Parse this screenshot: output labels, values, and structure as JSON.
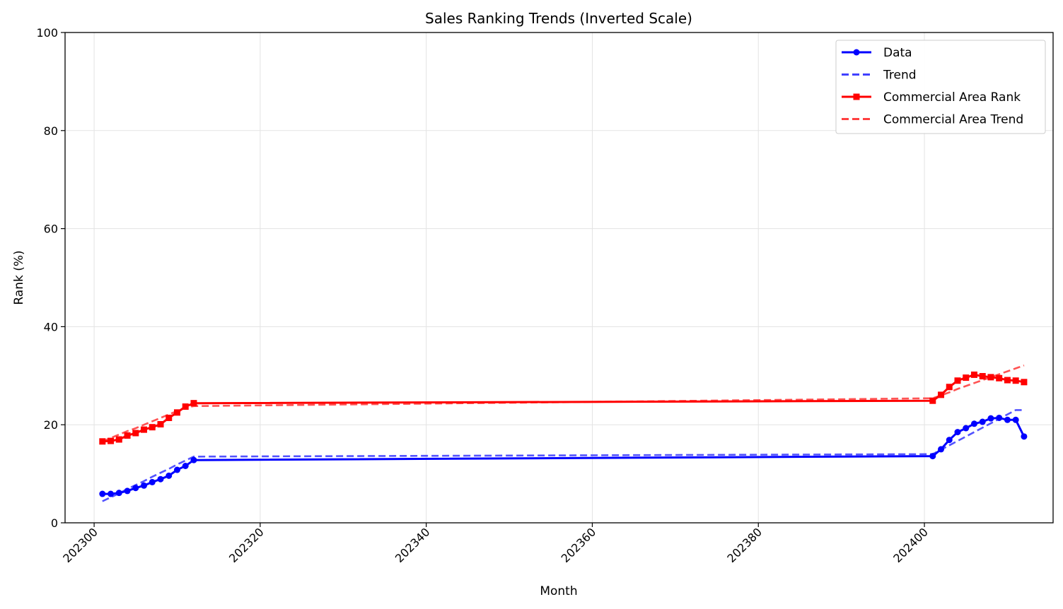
{
  "chart_data": {
    "type": "line",
    "title": "Sales Ranking Trends (Inverted Scale)",
    "xlabel": "Month",
    "ylabel": "Rank (%)",
    "xlim": [
      202296.5,
      202415.5
    ],
    "ylim": [
      0,
      100
    ],
    "xticks": [
      202300,
      202320,
      202340,
      202360,
      202380,
      202400
    ],
    "yticks": [
      0,
      20,
      40,
      60,
      80,
      100
    ],
    "grid": true,
    "legend": "top-right",
    "x": [
      202301,
      202302,
      202303,
      202304,
      202305,
      202306,
      202307,
      202308,
      202309,
      202310,
      202311,
      202312,
      202401,
      202402,
      202403,
      202404,
      202405,
      202406,
      202407,
      202408,
      202409,
      202410,
      202411,
      202412
    ],
    "series": [
      {
        "name": "Data",
        "style": "solid-circle",
        "color": "#0000ff",
        "values": [
          5.9,
          5.9,
          6.1,
          6.5,
          7.1,
          7.6,
          8.3,
          8.9,
          9.6,
          10.8,
          11.6,
          12.8,
          13.6,
          15.0,
          16.9,
          18.5,
          19.3,
          20.2,
          20.6,
          21.3,
          21.4,
          21.0,
          21.0,
          17.6
        ]
      },
      {
        "name": "Trend",
        "style": "dashed",
        "color": "#4040ff",
        "values": [
          4.4,
          5.2,
          6.0,
          6.9,
          7.7,
          8.5,
          9.4,
          10.2,
          11.0,
          11.9,
          12.7,
          13.5,
          14.0,
          14.9,
          15.8,
          16.7,
          17.6,
          18.5,
          19.4,
          20.3,
          21.2,
          22.1,
          23.0,
          23.0
        ]
      },
      {
        "name": "Commercial Area Rank",
        "style": "solid-square",
        "color": "#ff0000",
        "values": [
          16.6,
          16.7,
          17.0,
          17.8,
          18.3,
          19.0,
          19.5,
          20.1,
          21.4,
          22.5,
          23.7,
          24.4,
          24.9,
          26.1,
          27.7,
          29.0,
          29.6,
          30.2,
          29.9,
          29.7,
          29.5,
          29.1,
          29.0,
          28.7
        ]
      },
      {
        "name": "Commercial Area Trend",
        "style": "dashed",
        "color": "#ff4040",
        "values": [
          16.6,
          17.3,
          18.0,
          18.7,
          19.3,
          20.0,
          20.7,
          21.4,
          22.1,
          22.8,
          23.5,
          23.8,
          25.4,
          26.0,
          26.6,
          27.3,
          27.9,
          28.5,
          29.1,
          29.7,
          30.3,
          30.9,
          31.5,
          32.1
        ]
      }
    ]
  }
}
